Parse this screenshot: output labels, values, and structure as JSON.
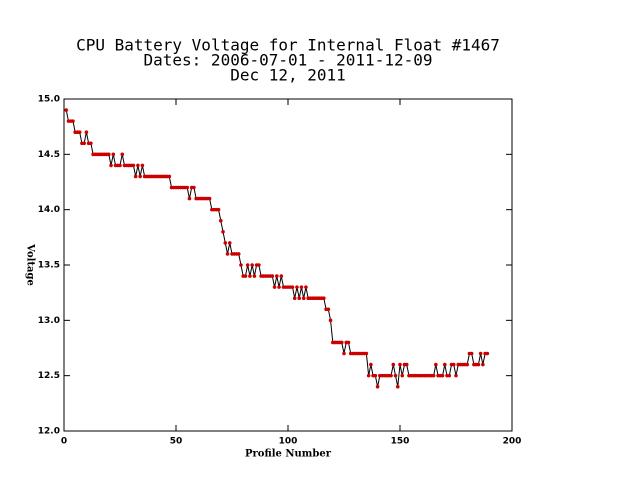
{
  "chart_data": {
    "type": "line",
    "title": [
      "CPU Battery Voltage for Internal Float #1467",
      "Dates:  2006-07-01 -  2011-12-09",
      "Dec 12, 2011"
    ],
    "xlabel": "Profile Number",
    "ylabel": "Voltage",
    "x": [
      1,
      2,
      3,
      4,
      5,
      6,
      7,
      8,
      9,
      10,
      11,
      12,
      13,
      14,
      15,
      16,
      17,
      18,
      19,
      20,
      21,
      22,
      23,
      24,
      25,
      26,
      27,
      28,
      29,
      30,
      31,
      32,
      33,
      34,
      35,
      36,
      37,
      38,
      39,
      40,
      41,
      42,
      43,
      44,
      45,
      46,
      47,
      48,
      49,
      50,
      51,
      52,
      53,
      54,
      55,
      56,
      57,
      58,
      59,
      60,
      61,
      62,
      63,
      64,
      65,
      66,
      67,
      68,
      69,
      70,
      71,
      72,
      73,
      74,
      75,
      76,
      77,
      78,
      79,
      80,
      81,
      82,
      83,
      84,
      85,
      86,
      87,
      88,
      89,
      90,
      91,
      92,
      93,
      94,
      95,
      96,
      97,
      98,
      99,
      100,
      101,
      102,
      103,
      104,
      105,
      106,
      107,
      108,
      109,
      110,
      111,
      112,
      113,
      114,
      115,
      116,
      117,
      118,
      119,
      120,
      121,
      122,
      123,
      124,
      125,
      126,
      127,
      128,
      129,
      130,
      131,
      132,
      133,
      134,
      135,
      136,
      137,
      138,
      139,
      140,
      141,
      142,
      143,
      144,
      145,
      146,
      147,
      148,
      149,
      150,
      151,
      152,
      153,
      154,
      155,
      156,
      157,
      158,
      159,
      160,
      161,
      162,
      163,
      164,
      165,
      166,
      167,
      168,
      169,
      170,
      171,
      172,
      173,
      174,
      175,
      176,
      177,
      178,
      179,
      180,
      181,
      182,
      183,
      184,
      185,
      186,
      187,
      188,
      189
    ],
    "series": [
      {
        "name": "Voltage",
        "color": "#cc0000",
        "line_color": "#000000",
        "values": [
          14.9,
          14.8,
          14.8,
          14.8,
          14.7,
          14.7,
          14.7,
          14.6,
          14.6,
          14.7,
          14.6,
          14.6,
          14.5,
          14.5,
          14.5,
          14.5,
          14.5,
          14.5,
          14.5,
          14.5,
          14.4,
          14.5,
          14.4,
          14.4,
          14.4,
          14.5,
          14.4,
          14.4,
          14.4,
          14.4,
          14.4,
          14.3,
          14.4,
          14.3,
          14.4,
          14.3,
          14.3,
          14.3,
          14.3,
          14.3,
          14.3,
          14.3,
          14.3,
          14.3,
          14.3,
          14.3,
          14.3,
          14.2,
          14.2,
          14.2,
          14.2,
          14.2,
          14.2,
          14.2,
          14.2,
          14.1,
          14.2,
          14.2,
          14.1,
          14.1,
          14.1,
          14.1,
          14.1,
          14.1,
          14.1,
          14.0,
          14.0,
          14.0,
          14.0,
          13.9,
          13.8,
          13.7,
          13.6,
          13.7,
          13.6,
          13.6,
          13.6,
          13.6,
          13.5,
          13.4,
          13.4,
          13.5,
          13.4,
          13.5,
          13.4,
          13.5,
          13.5,
          13.4,
          13.4,
          13.4,
          13.4,
          13.4,
          13.4,
          13.3,
          13.4,
          13.3,
          13.4,
          13.3,
          13.3,
          13.3,
          13.3,
          13.3,
          13.2,
          13.3,
          13.2,
          13.3,
          13.2,
          13.3,
          13.2,
          13.2,
          13.2,
          13.2,
          13.2,
          13.2,
          13.2,
          13.2,
          13.1,
          13.1,
          13.0,
          12.8,
          12.8,
          12.8,
          12.8,
          12.8,
          12.7,
          12.8,
          12.8,
          12.7,
          12.7,
          12.7,
          12.7,
          12.7,
          12.7,
          12.7,
          12.7,
          12.5,
          12.6,
          12.5,
          12.5,
          12.4,
          12.5,
          12.5,
          12.5,
          12.5,
          12.5,
          12.5,
          12.6,
          12.5,
          12.4,
          12.6,
          12.5,
          12.6,
          12.6,
          12.5,
          12.5,
          12.5,
          12.5,
          12.5,
          12.5,
          12.5,
          12.5,
          12.5,
          12.5,
          12.5,
          12.5,
          12.6,
          12.5,
          12.5,
          12.5,
          12.6,
          12.5,
          12.5,
          12.6,
          12.6,
          12.5,
          12.6,
          12.6,
          12.6,
          12.6,
          12.6,
          12.7,
          12.7,
          12.6,
          12.6,
          12.6,
          12.7,
          12.6,
          12.7,
          12.7
        ]
      }
    ],
    "xlim": [
      0,
      200
    ],
    "xticks": [
      0,
      50,
      100,
      150,
      200
    ],
    "ylim": [
      12.0,
      15.0
    ],
    "yticks": [
      {
        "value": 12.0,
        "label": "12.0"
      },
      12.5,
      {
        "value": 13.0,
        "label": "13.0"
      },
      13.5,
      {
        "value": 14.0,
        "label": "14.0"
      },
      14.5,
      {
        "value": 15.0,
        "label": "15.0"
      }
    ]
  }
}
